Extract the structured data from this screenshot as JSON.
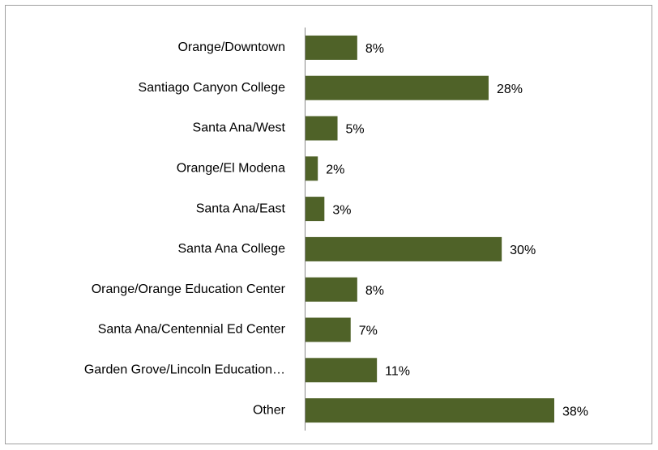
{
  "chart_data": {
    "type": "bar",
    "orientation": "horizontal",
    "categories": [
      "Orange/Downtown",
      "Santiago Canyon College",
      "Santa Ana/West",
      "Orange/El Modena",
      "Santa Ana/East",
      "Santa Ana College",
      "Orange/Orange Education Center",
      "Santa Ana/Centennial Ed Center",
      "Garden Grove/Lincoln Education…",
      "Other"
    ],
    "values": [
      8,
      28,
      5,
      2,
      3,
      30,
      8,
      7,
      11,
      38
    ],
    "value_labels": [
      "8%",
      "28%",
      "5%",
      "2%",
      "3%",
      "30%",
      "8%",
      "7%",
      "11%",
      "38%"
    ],
    "color": "#4f6228"
  }
}
